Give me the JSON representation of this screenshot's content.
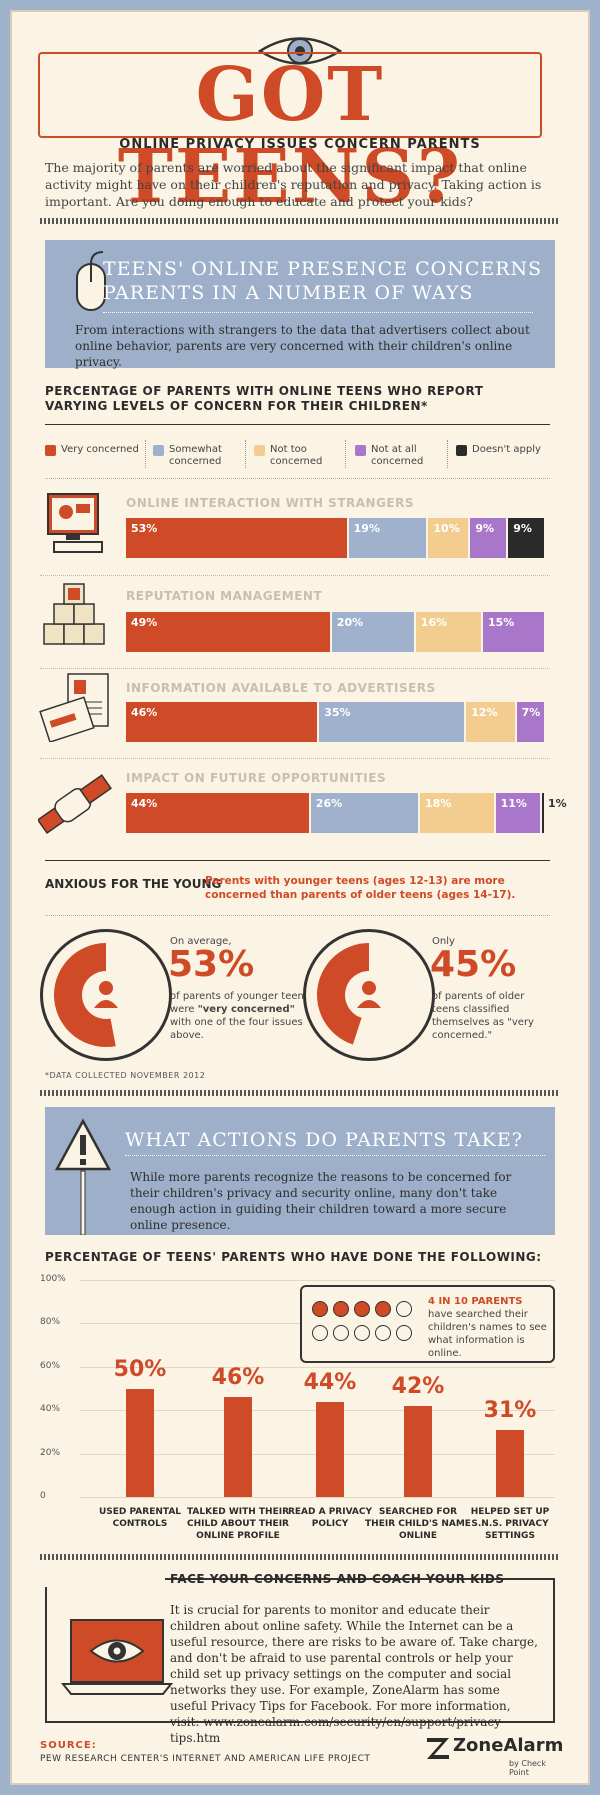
{
  "header": {
    "title": "GOT TEENS?",
    "subtitle": "ONLINE PRIVACY ISSUES CONCERN PARENTS",
    "intro": "The majority of parents are worried about the significant impact that online activity might have on their children's reputation and privacy. Taking action is important. Are you doing enough to educate and protect your kids?"
  },
  "section1": {
    "title_line1": "TEENS' ONLINE PRESENCE CONCERNS",
    "title_line2": "PARENTS IN A NUMBER OF WAYS",
    "text": "From interactions with strangers to the data that advertisers collect about online behavior, parents are very concerned with their children's online privacy."
  },
  "concern_chart_title": "PERCENTAGE OF PARENTS WITH ONLINE TEENS WHO REPORT VARYING LEVELS OF CONCERN FOR THEIR CHILDREN*",
  "legend": [
    {
      "label": "Very concerned",
      "color": "#cf4a26"
    },
    {
      "label": "Somewhat concerned",
      "color": "#9fb1cd"
    },
    {
      "label": "Not too concerned",
      "color": "#f2cd8f"
    },
    {
      "label": "Not at all concerned",
      "color": "#a977c9"
    },
    {
      "label": "Doesn't apply",
      "color": "#2b2b2b"
    }
  ],
  "anxious": {
    "heading": "ANXIOUS FOR THE YOUNG",
    "text": "Parents with younger teens (ages 12-13) are more concerned than parents of older teens (ages 14-17).",
    "left_pre": "On average,",
    "left_pct": "53%",
    "left_post_1": "of parents of younger teens were",
    "left_post_bold": "\"very concerned\"",
    "left_post_2": "with one of the four issues above.",
    "right_pre": "Only",
    "right_pct": "45%",
    "right_post": "of parents of older teens classified themselves as \"very concerned.\"",
    "footnote": "*DATA COLLECTED NOVEMBER 2012"
  },
  "section2": {
    "title": "WHAT ACTIONS DO PARENTS TAKE?",
    "text": "While more parents recognize the reasons to be concerned for their children's privacy and security online, many don't take enough action in guiding their children toward a more secure online presence."
  },
  "actions_chart_title": "PERCENTAGE OF TEENS' PARENTS WHO HAVE DONE THE FOLLOWING:",
  "callout": {
    "highlight": "4 IN 10 PARENTS",
    "text": "have searched their children's names to see what information is online."
  },
  "section3": {
    "title": "FACE YOUR CONCERNS AND COACH YOUR KIDS",
    "text": "It is crucial for parents to monitor and educate their children about online safety. While the Internet can be a useful resource, there are risks to be aware of. Take charge, and don't be afraid to use parental controls or help your child set up privacy settings on the computer and social networks they use. For example, ZoneAlarm has some useful Privacy Tips for Facebook. For more information, visit: www.zonealarm.com/security/en/support/privacy-tips.htm"
  },
  "footer": {
    "source_label": "SOURCE:",
    "source": "PEW RESEARCH CENTER'S INTERNET AND AMERICAN LIFE PROJECT",
    "brand": "ZoneAlarm",
    "brand_sub": "by Check Point"
  },
  "colors": {
    "accent": "#cf4a26",
    "blue": "#9eafca",
    "bg": "#fbf4e4"
  },
  "chart_data": [
    {
      "type": "bar",
      "stacked": true,
      "orientation": "horizontal",
      "title": "PERCENTAGE OF PARENTS WITH ONLINE TEENS WHO REPORT VARYING LEVELS OF CONCERN FOR THEIR CHILDREN*",
      "categories": [
        "ONLINE INTERACTION WITH STRANGERS",
        "REPUTATION MANAGEMENT",
        "INFORMATION AVAILABLE TO ADVERTISERS",
        "IMPACT ON FUTURE OPPORTUNITIES"
      ],
      "series": [
        {
          "name": "Very concerned",
          "values": [
            53,
            49,
            46,
            44
          ]
        },
        {
          "name": "Somewhat concerned",
          "values": [
            19,
            20,
            35,
            26
          ]
        },
        {
          "name": "Not too concerned",
          "values": [
            10,
            16,
            12,
            18
          ]
        },
        {
          "name": "Not at all concerned",
          "values": [
            9,
            15,
            7,
            11
          ]
        },
        {
          "name": "Doesn't apply",
          "values": [
            9,
            0,
            0,
            1
          ]
        }
      ]
    },
    {
      "type": "pie",
      "values": [
        53,
        45
      ],
      "labels": [
        "53%",
        "45%"
      ]
    },
    {
      "type": "bar",
      "title": "PERCENTAGE OF TEENS' PARENTS WHO HAVE DONE THE FOLLOWING:",
      "categories": [
        "USED PARENTAL CONTROLS",
        "TALKED WITH THEIR CHILD ABOUT THEIR ONLINE PROFILE",
        "READ A PRIVACY POLICY",
        "SEARCHED FOR THEIR CHILD'S NAME ONLINE",
        "HELPED SET UP S.N.S. PRIVACY SETTINGS"
      ],
      "values": [
        50,
        46,
        44,
        42,
        31
      ],
      "labels": [
        "50%",
        "46%",
        "44%",
        "42%",
        "31%"
      ],
      "yticks": [
        "0",
        "20%",
        "40%",
        "60%",
        "80%",
        "100%"
      ],
      "ylim": [
        0,
        100
      ]
    }
  ]
}
